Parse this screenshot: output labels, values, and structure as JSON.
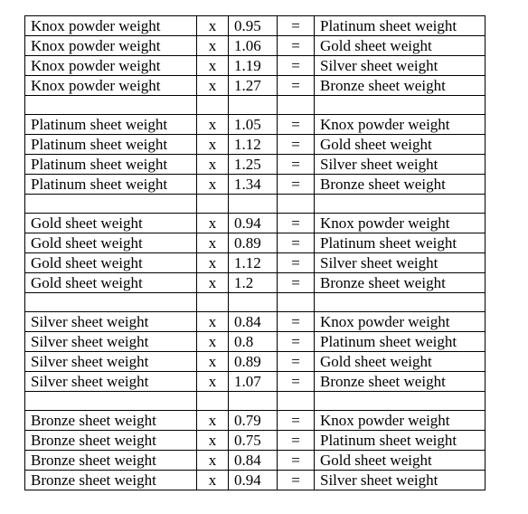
{
  "table": {
    "groups": [
      {
        "rows": [
          {
            "from": "Knox powder weight",
            "op": "x",
            "factor": "0.95",
            "eq": "=",
            "to": "Platinum sheet weight"
          },
          {
            "from": "Knox powder weight",
            "op": "x",
            "factor": "1.06",
            "eq": "=",
            "to": "Gold sheet weight"
          },
          {
            "from": "Knox powder weight",
            "op": "x",
            "factor": "1.19",
            "eq": "=",
            "to": "Silver sheet weight"
          },
          {
            "from": "Knox powder weight",
            "op": "x",
            "factor": "1.27",
            "eq": "=",
            "to": "Bronze sheet weight"
          }
        ]
      },
      {
        "rows": [
          {
            "from": "Platinum sheet weight",
            "op": "x",
            "factor": "1.05",
            "eq": "=",
            "to": "Knox powder weight"
          },
          {
            "from": "Platinum sheet weight",
            "op": "x",
            "factor": "1.12",
            "eq": "=",
            "to": "Gold sheet weight"
          },
          {
            "from": "Platinum sheet weight",
            "op": "x",
            "factor": "1.25",
            "eq": "=",
            "to": "Silver sheet weight"
          },
          {
            "from": "Platinum sheet weight",
            "op": "x",
            "factor": "1.34",
            "eq": "=",
            "to": "Bronze sheet weight"
          }
        ]
      },
      {
        "rows": [
          {
            "from": "Gold sheet weight",
            "op": "x",
            "factor": "0.94",
            "eq": "=",
            "to": "Knox powder weight"
          },
          {
            "from": "Gold sheet weight",
            "op": "x",
            "factor": "0.89",
            "eq": "=",
            "to": "Platinum sheet weight"
          },
          {
            "from": "Gold sheet weight",
            "op": "x",
            "factor": "1.12",
            "eq": "=",
            "to": "Silver sheet weight"
          },
          {
            "from": "Gold sheet weight",
            "op": "x",
            "factor": "1.2",
            "eq": "=",
            "to": "Bronze sheet weight"
          }
        ]
      },
      {
        "rows": [
          {
            "from": "Silver sheet weight",
            "op": "x",
            "factor": "0.84",
            "eq": "=",
            "to": "Knox powder weight"
          },
          {
            "from": "Silver sheet weight",
            "op": "x",
            "factor": "0.8",
            "eq": "=",
            "to": "Platinum sheet weight"
          },
          {
            "from": "Silver sheet weight",
            "op": "x",
            "factor": "0.89",
            "eq": "=",
            "to": "Gold sheet weight"
          },
          {
            "from": "Silver sheet weight",
            "op": "x",
            "factor": "1.07",
            "eq": "=",
            "to": "Bronze sheet weight"
          }
        ]
      },
      {
        "rows": [
          {
            "from": "Bronze sheet weight",
            "op": "x",
            "factor": "0.79",
            "eq": "=",
            "to": "Knox powder weight"
          },
          {
            "from": "Bronze sheet weight",
            "op": "x",
            "factor": "0.75",
            "eq": "=",
            "to": "Platinum sheet weight"
          },
          {
            "from": "Bronze sheet weight",
            "op": "x",
            "factor": "0.84",
            "eq": "=",
            "to": "Gold sheet weight"
          },
          {
            "from": "Bronze sheet weight",
            "op": "x",
            "factor": "0.94",
            "eq": "=",
            "to": "Silver sheet weight"
          }
        ]
      }
    ]
  }
}
